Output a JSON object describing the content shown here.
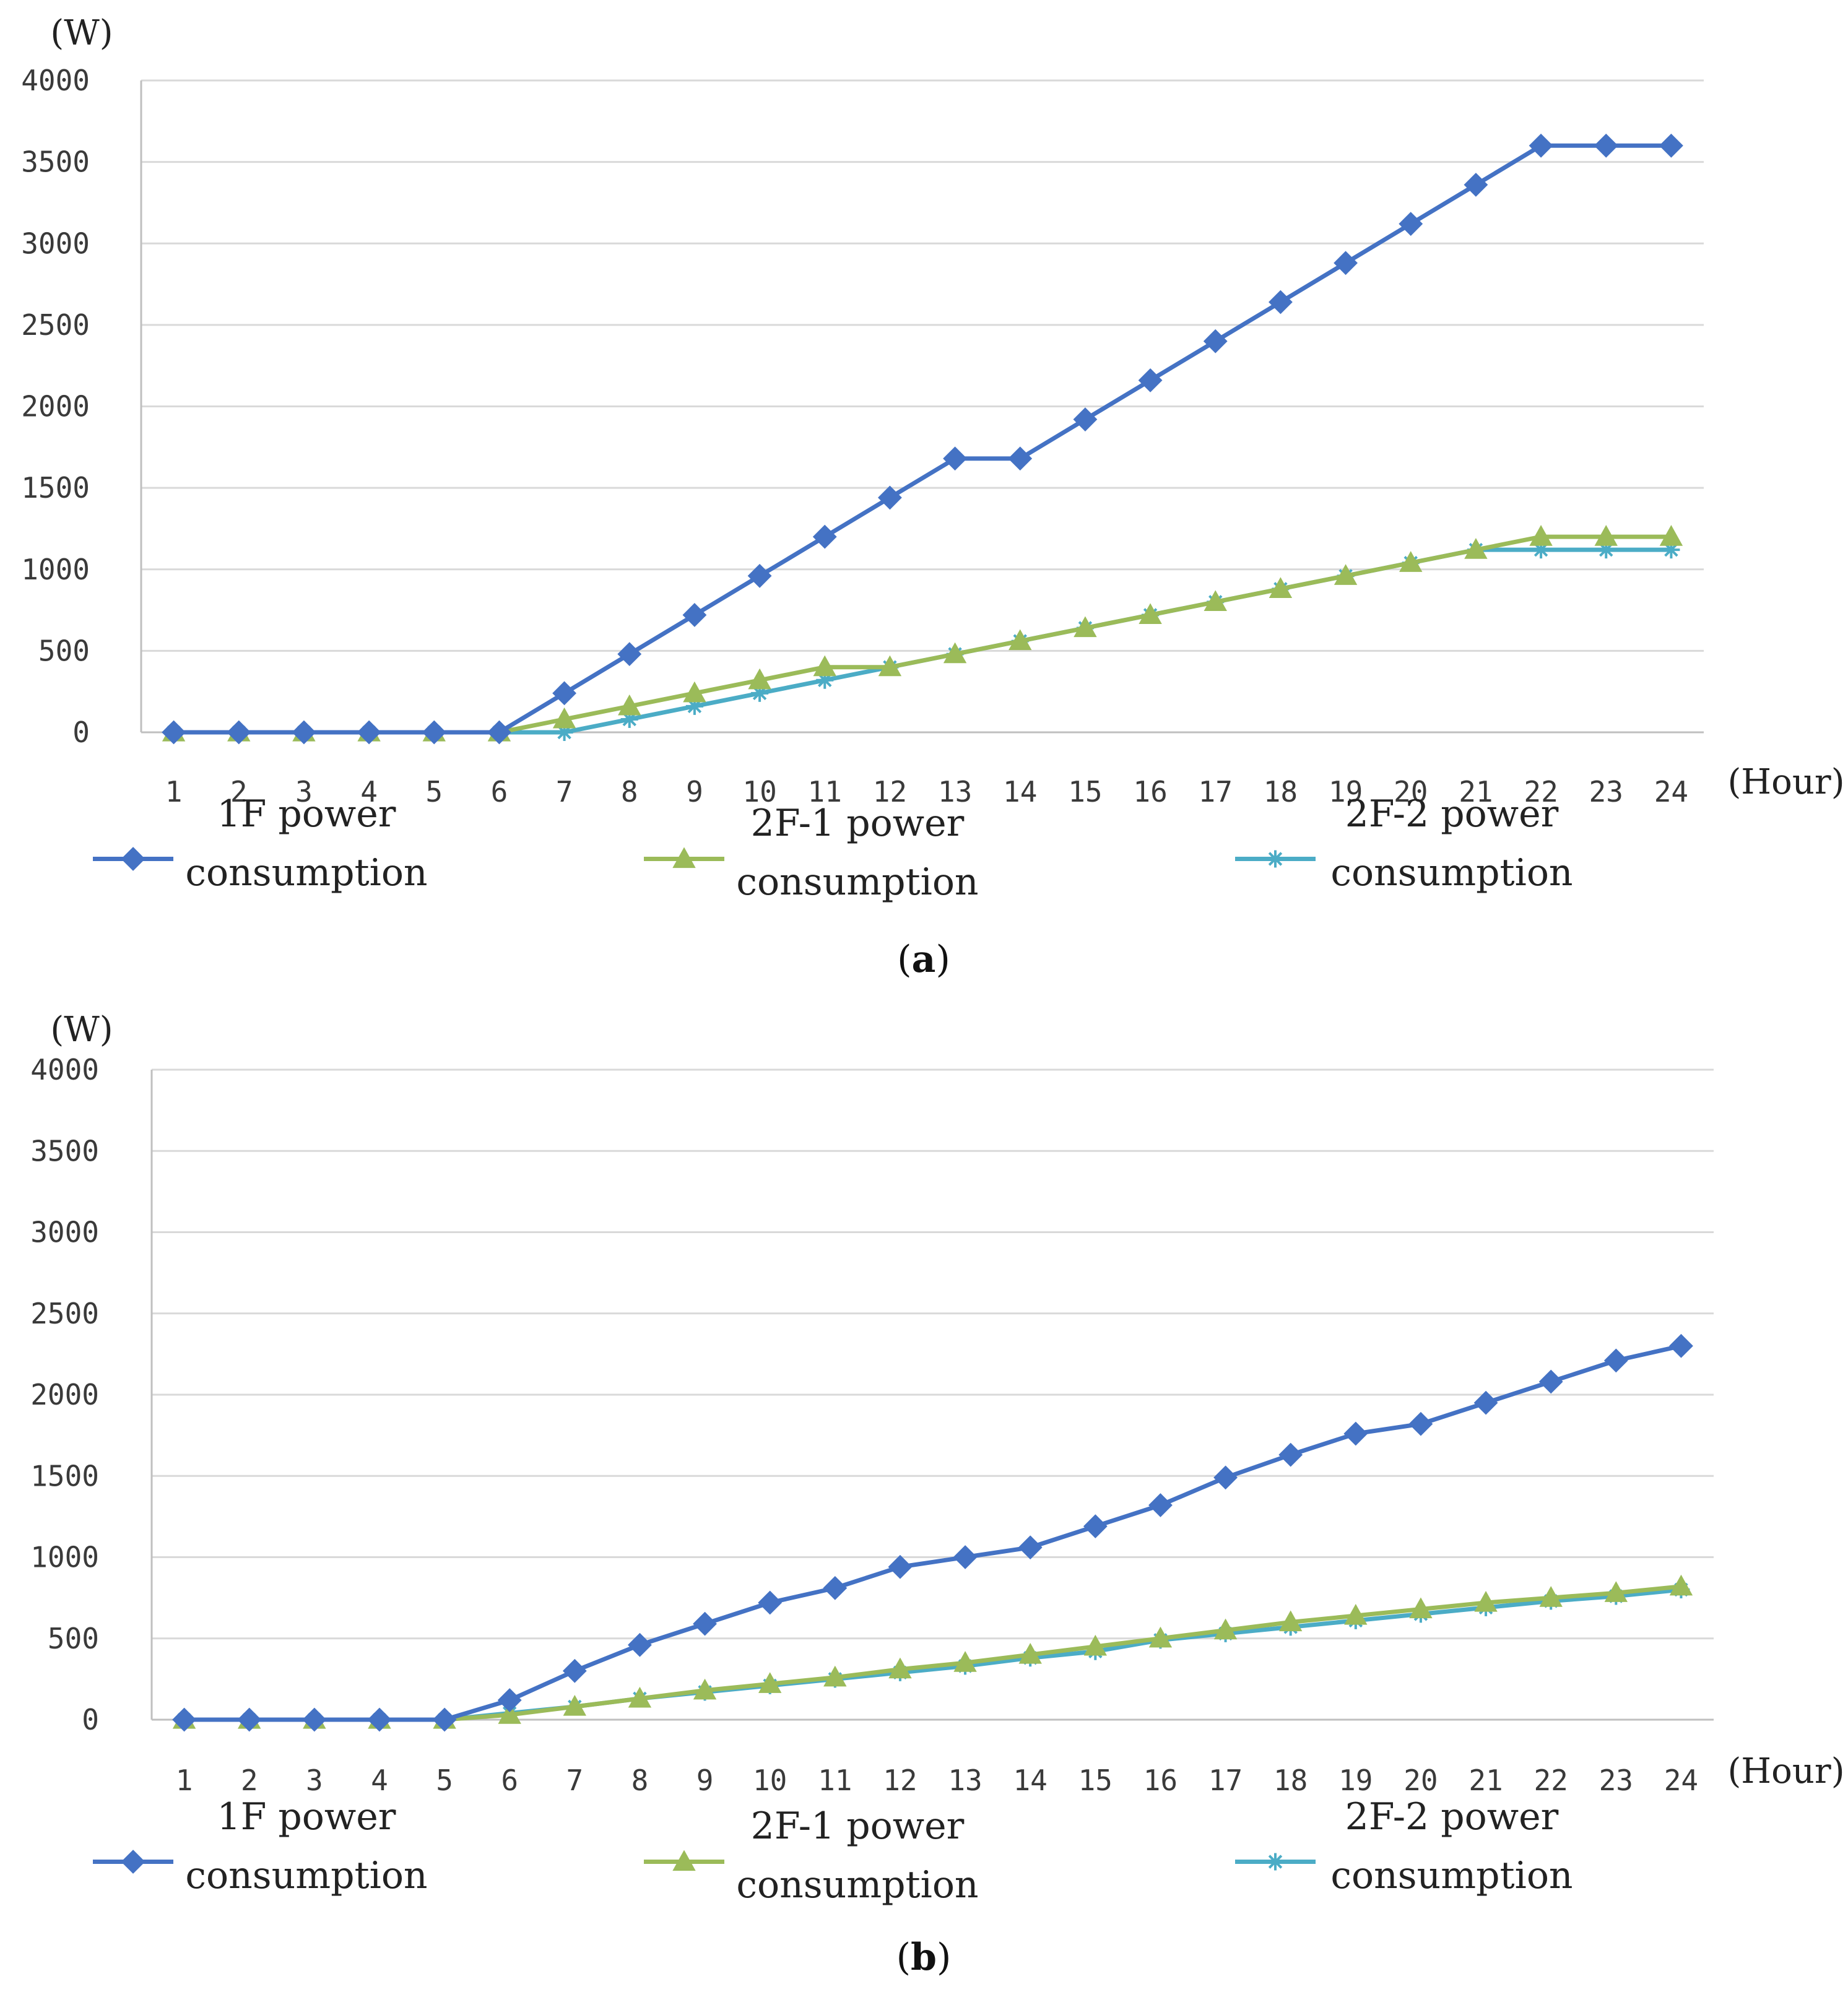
{
  "figure": {
    "panels": [
      {
        "caption_open": "(",
        "caption_letter": "a",
        "caption_close": ")"
      },
      {
        "caption_open": "(",
        "caption_letter": "b",
        "caption_close": ")"
      }
    ]
  },
  "chart_data": [
    {
      "type": "line",
      "panel": "a",
      "ylabel": "(W)",
      "xlabel": "(Hour)",
      "ylim": [
        0,
        4000
      ],
      "yticks": [
        0,
        500,
        1000,
        1500,
        2000,
        2500,
        3000,
        3500,
        4000
      ],
      "grid": true,
      "legend_position": "bottom",
      "x": [
        1,
        2,
        3,
        4,
        5,
        6,
        7,
        8,
        9,
        10,
        11,
        12,
        13,
        14,
        15,
        16,
        17,
        18,
        19,
        20,
        21,
        22,
        23,
        24
      ],
      "series": [
        {
          "name": "1F power consumption",
          "legend_line1": "1F power",
          "legend_line2": "consumption",
          "color": "#4472C4",
          "marker": "diamond",
          "values": [
            0,
            0,
            0,
            0,
            0,
            0,
            240,
            480,
            720,
            960,
            1200,
            1440,
            1680,
            1680,
            1920,
            2160,
            2400,
            2640,
            2880,
            3120,
            3360,
            3600,
            3600,
            3600
          ]
        },
        {
          "name": "2F-1 power consumption",
          "legend_line1": "2F-1 power",
          "legend_line2": "consumption",
          "color": "#9BBB59",
          "marker": "triangle",
          "values": [
            0,
            0,
            0,
            0,
            0,
            0,
            80,
            160,
            240,
            320,
            400,
            400,
            480,
            560,
            640,
            720,
            800,
            880,
            960,
            1040,
            1120,
            1200,
            1200,
            1200
          ]
        },
        {
          "name": "2F-2 power consumption",
          "legend_line1": "2F-2 power",
          "legend_line2": "consumption",
          "color": "#4BACC6",
          "marker": "star",
          "values": [
            0,
            0,
            0,
            0,
            0,
            0,
            0,
            80,
            160,
            240,
            320,
            400,
            480,
            560,
            640,
            720,
            800,
            880,
            960,
            1040,
            1120,
            1120,
            1120,
            1120
          ]
        }
      ]
    },
    {
      "type": "line",
      "panel": "b",
      "ylabel": "(W)",
      "xlabel": "(Hour)",
      "ylim": [
        0,
        4000
      ],
      "yticks": [
        0,
        500,
        1000,
        1500,
        2000,
        2500,
        3000,
        3500,
        4000
      ],
      "grid": true,
      "legend_position": "bottom",
      "x": [
        1,
        2,
        3,
        4,
        5,
        6,
        7,
        8,
        9,
        10,
        11,
        12,
        13,
        14,
        15,
        16,
        17,
        18,
        19,
        20,
        21,
        22,
        23,
        24
      ],
      "series": [
        {
          "name": "1F power consumption",
          "legend_line1": "1F power",
          "legend_line2": "consumption",
          "color": "#4472C4",
          "marker": "diamond",
          "values": [
            0,
            0,
            0,
            0,
            0,
            120,
            300,
            460,
            590,
            720,
            810,
            940,
            1000,
            1060,
            1190,
            1320,
            1490,
            1630,
            1760,
            1820,
            1950,
            2080,
            2210,
            2300
          ]
        },
        {
          "name": "2F-1 power consumption",
          "legend_line1": "2F-1 power",
          "legend_line2": "consumption",
          "color": "#9BBB59",
          "marker": "triangle",
          "values": [
            0,
            0,
            0,
            0,
            0,
            30,
            80,
            130,
            180,
            220,
            260,
            310,
            350,
            400,
            450,
            500,
            550,
            600,
            640,
            680,
            720,
            750,
            780,
            820
          ]
        },
        {
          "name": "2F-2 power consumption",
          "legend_line1": "2F-2 power",
          "legend_line2": "consumption",
          "color": "#4BACC6",
          "marker": "star",
          "values": [
            0,
            0,
            0,
            0,
            0,
            40,
            80,
            130,
            170,
            210,
            250,
            290,
            330,
            380,
            420,
            490,
            530,
            570,
            610,
            650,
            690,
            730,
            760,
            800
          ]
        }
      ]
    }
  ]
}
